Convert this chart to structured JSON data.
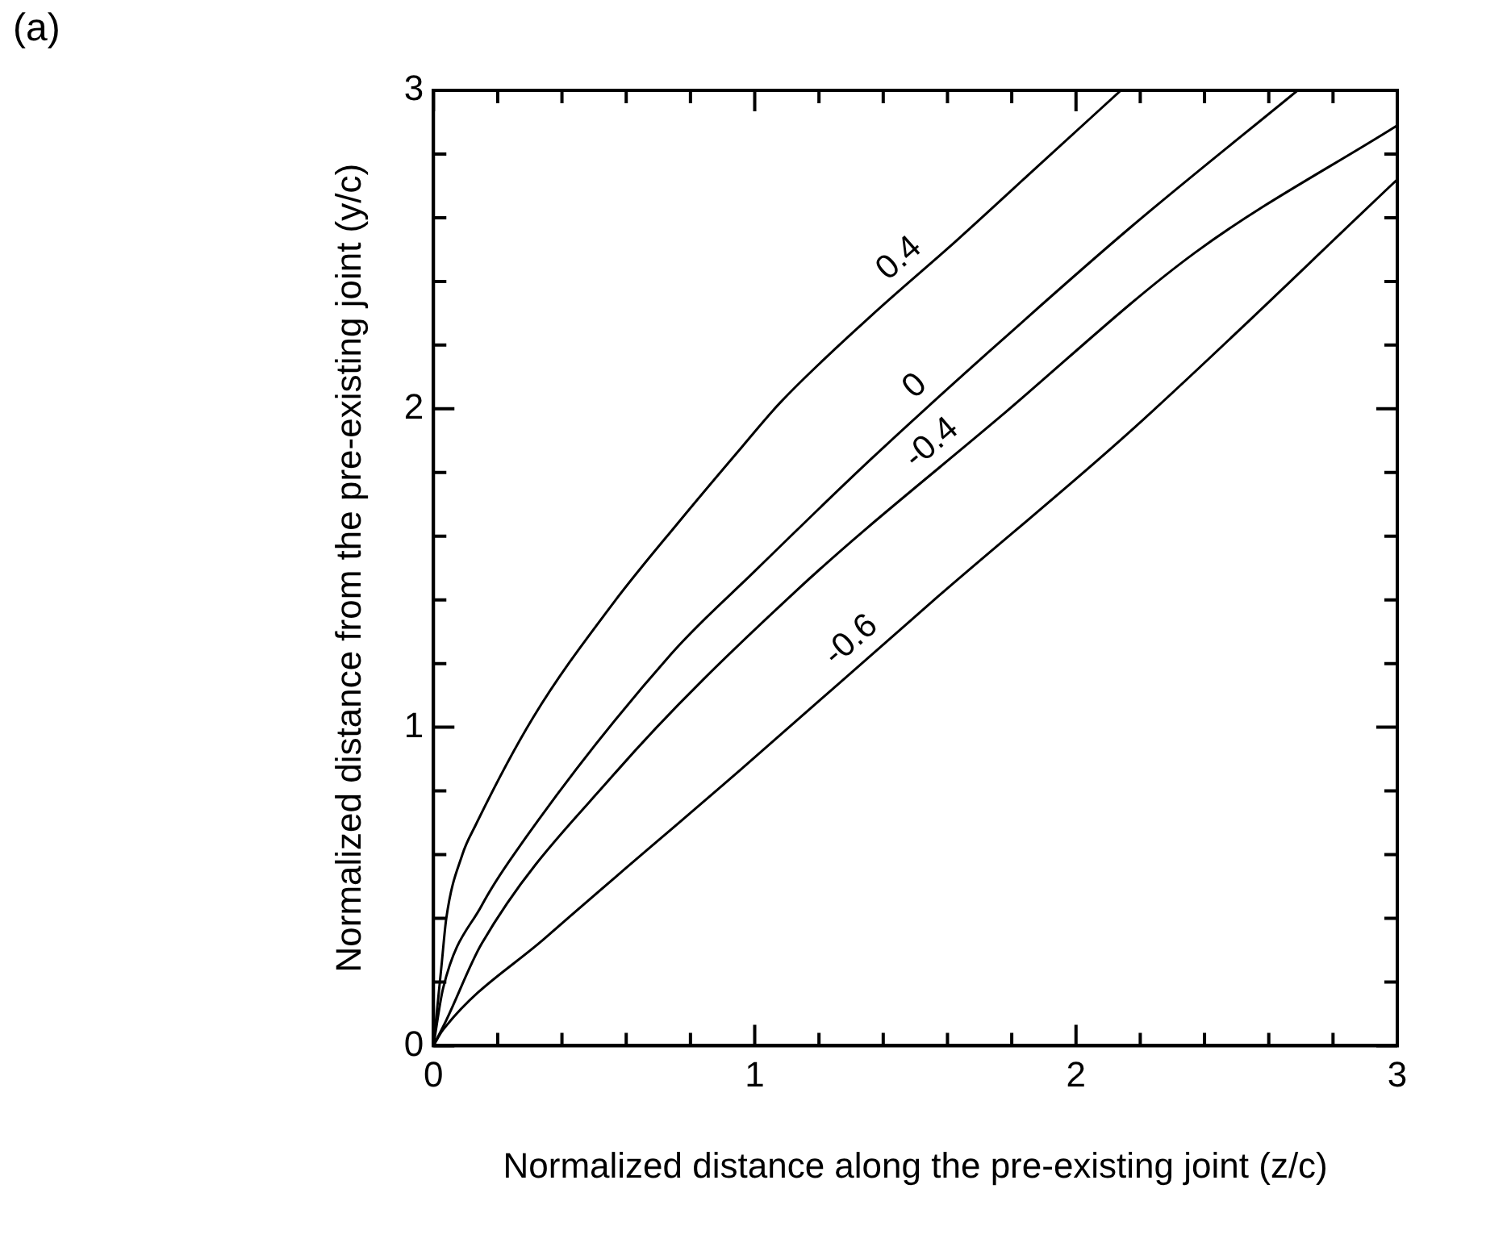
{
  "chart_data": {
    "type": "line",
    "xlabel": "Normalized distance along the pre-existing joint (z/c)",
    "ylabel": "Normalized distance from the pre-existing joint (y/c)",
    "annotations": [
      "(a)"
    ],
    "xlim": [
      0,
      3
    ],
    "ylim": [
      0,
      3
    ],
    "xticks": [
      0,
      {
        "value": 0.2,
        "label": null
      },
      {
        "value": 0.4,
        "label": null
      },
      {
        "value": 0.6,
        "label": null
      },
      {
        "value": 0.8,
        "label": null
      },
      1,
      {
        "value": 1.2,
        "label": null
      },
      {
        "value": 1.4,
        "label": null
      },
      {
        "value": 1.6,
        "label": null
      },
      {
        "value": 1.8,
        "label": null
      },
      2,
      {
        "value": 2.2,
        "label": null
      },
      {
        "value": 2.4,
        "label": null
      },
      {
        "value": 2.6,
        "label": null
      },
      {
        "value": 2.8,
        "label": null
      },
      3
    ],
    "yticks": [
      0,
      {
        "value": 0.2,
        "label": null
      },
      {
        "value": 0.4,
        "label": null
      },
      {
        "value": 0.6,
        "label": null
      },
      {
        "value": 0.8,
        "label": null
      },
      1,
      {
        "value": 1.2,
        "label": null
      },
      {
        "value": 1.4,
        "label": null
      },
      {
        "value": 1.6,
        "label": null
      },
      {
        "value": 1.8,
        "label": null
      },
      2,
      {
        "value": 2.2,
        "label": null
      },
      {
        "value": 2.4,
        "label": null
      },
      {
        "value": 2.6,
        "label": null
      },
      {
        "value": 2.8,
        "label": null
      },
      3
    ],
    "grid": false,
    "legend": false,
    "marker": "none",
    "line_style": "solid",
    "series": [
      {
        "name": "0.4",
        "color": "#000000",
        "x": [
          0,
          0.01,
          0.025,
          0.04,
          0.09,
          0.13,
          0.31,
          0.56,
          0.76,
          0.96,
          1.08,
          1.36,
          1.63,
          1.89,
          2.14
        ],
        "values": [
          0,
          0.1,
          0.25,
          0.4,
          0.6,
          0.69,
          1.03,
          1.39,
          1.64,
          1.88,
          2.02,
          2.29,
          2.53,
          2.77,
          3.0
        ]
      },
      {
        "name": "0",
        "color": "#000000",
        "x": [
          0,
          0.03,
          0.15,
          0.25,
          0.74,
          1.0,
          1.36,
          1.73,
          2.17,
          2.69
        ],
        "values": [
          0,
          0.18,
          0.44,
          0.6,
          1.23,
          1.49,
          1.84,
          2.18,
          2.57,
          3.0
        ]
      },
      {
        "name": "-0.4",
        "color": "#000000",
        "x": [
          0,
          0.04,
          0.15,
          0.56,
          1.12,
          1.77,
          2.37,
          3.0
        ],
        "values": [
          0,
          0.08,
          0.32,
          0.85,
          1.42,
          1.98,
          2.49,
          2.89
        ]
      },
      {
        "name": "-0.6",
        "color": "#000000",
        "x": [
          0,
          0.03,
          0.35,
          0.96,
          1.57,
          2.17,
          3.0
        ],
        "values": [
          0,
          0.05,
          0.34,
          0.87,
          1.41,
          1.93,
          2.72
        ]
      }
    ]
  }
}
